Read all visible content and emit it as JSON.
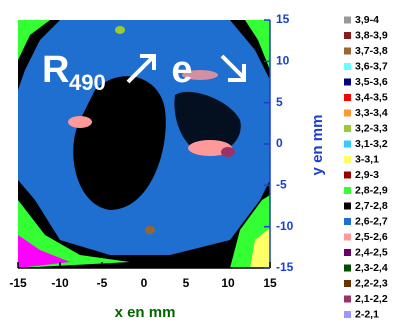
{
  "chart_data": {
    "type": "contour",
    "x_label": "x en mm",
    "y_label": "y en mm",
    "xlim": [
      -15,
      15
    ],
    "ylim": [
      -15,
      15
    ],
    "xticks": [
      -15,
      -10,
      -5,
      0,
      5,
      10,
      15
    ],
    "yticks": [
      -15,
      -10,
      -5,
      0,
      5,
      10,
      15
    ],
    "annotations": {
      "main": "R",
      "sub": "490",
      "e": "e"
    },
    "series": [
      {
        "name": "3,9-4",
        "color": "#999999"
      },
      {
        "name": "3,8-3,9",
        "color": "#8b1a1a"
      },
      {
        "name": "3,7-3,8",
        "color": "#996633"
      },
      {
        "name": "3,6-3,7",
        "color": "#66ffff"
      },
      {
        "name": "3,5-3,6",
        "color": "#000080"
      },
      {
        "name": "3,4-3,5",
        "color": "#ff0000"
      },
      {
        "name": "3,3-3,4",
        "color": "#ff9933"
      },
      {
        "name": "3,2-3,3",
        "color": "#99cc33"
      },
      {
        "name": "3,1-3,2",
        "color": "#33ccff"
      },
      {
        "name": "3-3,1",
        "color": "#ffff66"
      },
      {
        "name": "2,9-3",
        "color": "#990000"
      },
      {
        "name": "2,8-2,9",
        "color": "#33ff33"
      },
      {
        "name": "2,7-2,8",
        "color": "#000000"
      },
      {
        "name": "2,6-2,7",
        "color": "#1f6fd1"
      },
      {
        "name": "2,5-2,6",
        "color": "#ff9999"
      },
      {
        "name": "2,4-2,5",
        "color": "#660066"
      },
      {
        "name": "2,3-2,4",
        "color": "#004d00"
      },
      {
        "name": "2,2-2,3",
        "color": "#663300"
      },
      {
        "name": "2,1-2,2",
        "color": "#993366"
      },
      {
        "name": "2-2,1",
        "color": "#9999ff"
      }
    ]
  }
}
